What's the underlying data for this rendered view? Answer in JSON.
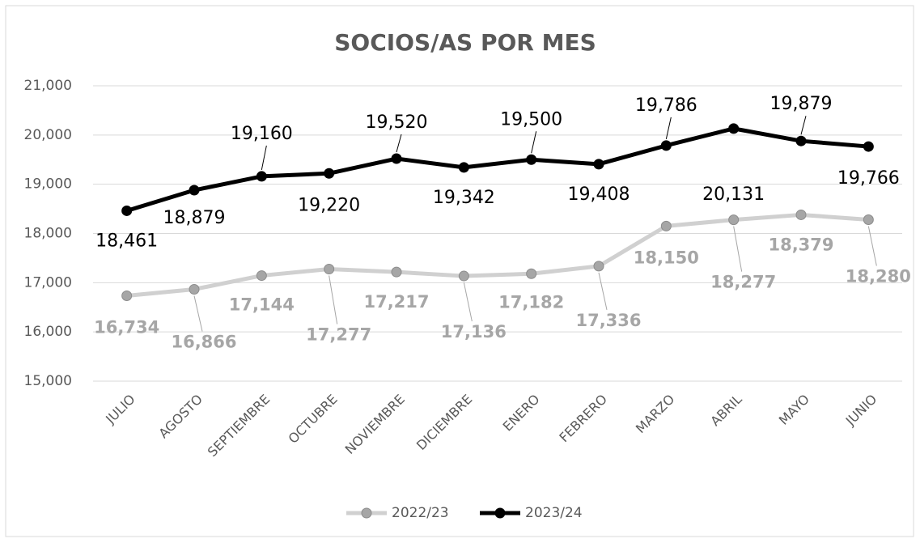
{
  "chart_data": {
    "type": "line",
    "title": "SOCIOS/AS POR MES",
    "categories": [
      "JULIO",
      "AGOSTO",
      "SEPTIEMBRE",
      "OCTUBRE",
      "NOVIEMBRE",
      "DICIEMBRE",
      "ENERO",
      "FEBRERO",
      "MARZO",
      "ABRIL",
      "MAYO",
      "JUNIO"
    ],
    "series": [
      {
        "name": "2022/23",
        "color": "#d0d0d0",
        "marker_color": "#a6a6a6",
        "values": [
          16734,
          16866,
          17144,
          17277,
          17217,
          17136,
          17182,
          17336,
          18150,
          18277,
          18379,
          18280
        ],
        "value_labels": [
          "16,734",
          "16,866",
          "17,144",
          "17,277",
          "17,217",
          "17,136",
          "17,182",
          "17,336",
          "18,150",
          "18,277",
          "18,379",
          "18,280"
        ]
      },
      {
        "name": "2023/24",
        "color": "#000000",
        "marker_color": "#000000",
        "values": [
          18461,
          18879,
          19160,
          19220,
          19520,
          19342,
          19500,
          19408,
          19786,
          20131,
          19879,
          19766
        ],
        "value_labels": [
          "18,461",
          "18,879",
          "19,160",
          "19,220",
          "19,520",
          "19,342",
          "19,500",
          "19,408",
          "19,786",
          "20,131",
          "19,879",
          "19,766"
        ]
      }
    ],
    "ylim": [
      15000,
      21000
    ],
    "yticks": [
      {
        "value": 15000,
        "label": "15,000"
      },
      {
        "value": 16000,
        "label": "16,000"
      },
      {
        "value": 17000,
        "label": "17,000"
      },
      {
        "value": 18000,
        "label": "18,000"
      },
      {
        "value": 19000,
        "label": "19,000"
      },
      {
        "value": 20000,
        "label": "20,000"
      },
      {
        "value": 21000,
        "label": "21,000"
      }
    ],
    "grid": true,
    "legend": "bottom"
  }
}
